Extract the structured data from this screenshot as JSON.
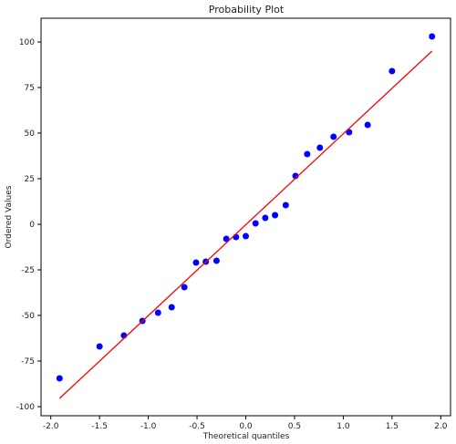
{
  "chart_data": {
    "type": "scatter",
    "title": "Probability Plot",
    "xlabel": "Theoretical quantiles",
    "ylabel": "Ordered Values",
    "xlim": [
      -2.1,
      2.1
    ],
    "ylim": [
      -105,
      113
    ],
    "xticks": [
      -2.0,
      -1.5,
      -1.0,
      -0.5,
      0.0,
      0.5,
      1.0,
      1.5,
      2.0
    ],
    "xtick_labels": [
      "-2.0",
      "-1.5",
      "-1.0",
      "-0.5",
      "0.0",
      "0.5",
      "1.0",
      "1.5",
      "2.0"
    ],
    "yticks": [
      -100,
      -75,
      -50,
      -25,
      0,
      25,
      50,
      75,
      100
    ],
    "ytick_labels": [
      "-100",
      "-75",
      "-50",
      "-25",
      "0",
      "25",
      "50",
      "75",
      "100"
    ],
    "grid": false,
    "series": [
      {
        "kind": "points",
        "color": "#0000ff",
        "x": [
          -1.91,
          -1.5,
          -1.25,
          -1.06,
          -0.9,
          -0.76,
          -0.63,
          -0.51,
          -0.41,
          -0.3,
          -0.2,
          -0.1,
          0.0,
          0.1,
          0.2,
          0.3,
          0.41,
          0.51,
          0.63,
          0.76,
          0.9,
          1.06,
          1.25,
          1.5,
          1.91
        ],
        "y": [
          -84.5,
          -67,
          -61,
          -53,
          -48.5,
          -45.5,
          -34.5,
          -21,
          -20.5,
          -20,
          -8,
          -7,
          -6.5,
          0.5,
          3.5,
          5,
          10.5,
          26.5,
          38.5,
          42,
          48,
          50.5,
          54.5,
          84,
          103
        ]
      },
      {
        "kind": "line",
        "color": "#ff0000",
        "x": [
          -1.91,
          1.91
        ],
        "y": [
          -95.5,
          95
        ]
      }
    ]
  }
}
